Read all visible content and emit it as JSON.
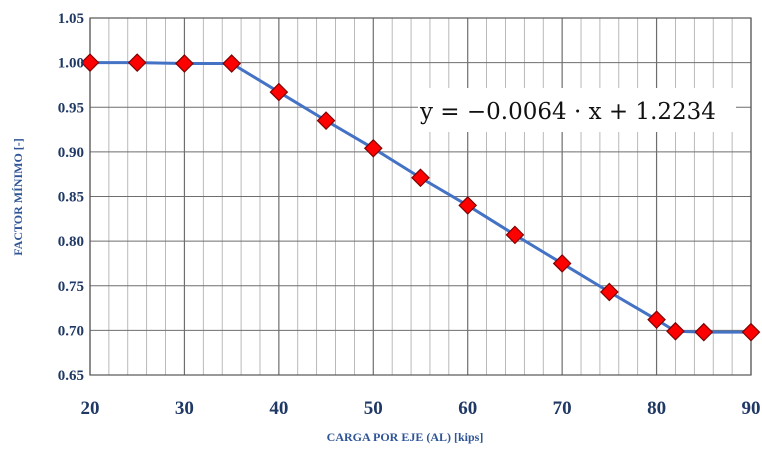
{
  "chart_data": {
    "type": "line",
    "title": "",
    "xlabel": "CARGA POR EJE (AL) [kips]",
    "ylabel": "FACTOR MÍNIMO [-]",
    "xlim": [
      20,
      90
    ],
    "ylim": [
      0.65,
      1.05
    ],
    "x_ticks": [
      20,
      30,
      40,
      50,
      60,
      70,
      80,
      90
    ],
    "y_ticks": [
      "0.65",
      "0.70",
      "0.75",
      "0.80",
      "0.85",
      "0.90",
      "0.95",
      "1.00",
      "1.05"
    ],
    "x_minor_step": 2,
    "y_major_step": 0.05,
    "grid": true,
    "line_color": "#4472c4",
    "marker_color": "#ff0000",
    "marker_edge_color": "#7f0000",
    "marker_shape": "diamond",
    "equation": "y = −0.0064 · x + 1.2234",
    "series": [
      {
        "x": [
          20,
          25,
          30,
          35,
          40,
          45,
          50,
          55,
          60,
          65,
          70,
          75,
          80,
          82,
          85,
          90
        ],
        "y": [
          1.0,
          1.0,
          0.999,
          0.999,
          0.967,
          0.935,
          0.904,
          0.871,
          0.84,
          0.807,
          0.775,
          0.743,
          0.712,
          0.699,
          0.698,
          0.698
        ]
      }
    ]
  }
}
